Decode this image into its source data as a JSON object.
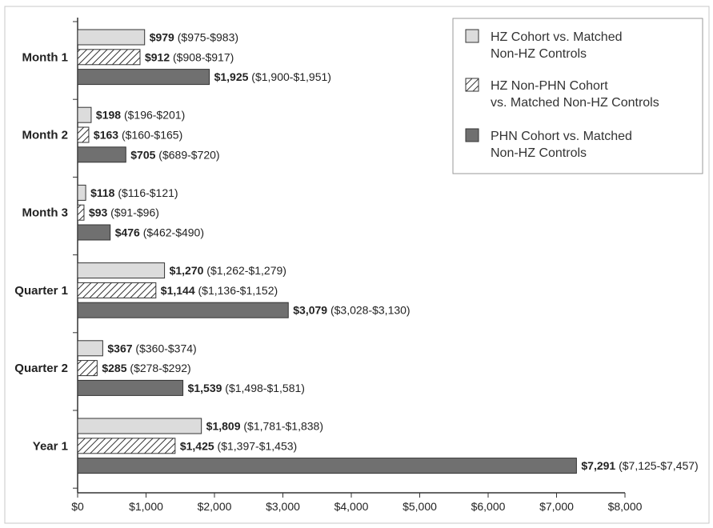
{
  "chart_data": {
    "type": "bar",
    "orientation": "horizontal",
    "categories": [
      "Month 1",
      "Month 2",
      "Month 3",
      "Quarter 1",
      "Quarter 2",
      "Year 1"
    ],
    "series": [
      {
        "name": "HZ Cohort vs. Matched Non-HZ Controls",
        "legend_lines": [
          "HZ Cohort vs. Matched",
          "Non-HZ Controls"
        ],
        "fill": "#dcdcdc",
        "pattern": "solid",
        "values": [
          979,
          198,
          118,
          1270,
          367,
          1809
        ],
        "value_labels": [
          "$979",
          "$198",
          "$118",
          "$1,270",
          "$367",
          "$1,809"
        ],
        "ci_labels": [
          "($975-$983)",
          "($196-$201)",
          "($116-$121)",
          "($1,262-$1,279)",
          "($360-$374)",
          "($1,781-$1,838)"
        ]
      },
      {
        "name": "HZ Non-PHN Cohort vs. Matched Non-HZ Controls",
        "legend_lines": [
          "HZ Non-PHN Cohort",
          "vs. Matched Non-HZ Controls"
        ],
        "fill": "#ffffff",
        "pattern": "hatched",
        "values": [
          912,
          163,
          93,
          1144,
          285,
          1425
        ],
        "value_labels": [
          "$912",
          "$163",
          "$93",
          "$1,144",
          "$285",
          "$1,425"
        ],
        "ci_labels": [
          "($908-$917)",
          "($160-$165)",
          "($91-$96)",
          "($1,136-$1,152)",
          "($278-$292)",
          "($1,397-$1,453)"
        ]
      },
      {
        "name": "PHN Cohort vs. Matched Non-HZ Controls",
        "legend_lines": [
          "PHN Cohort vs. Matched",
          "Non-HZ Controls"
        ],
        "fill": "#707070",
        "pattern": "solid",
        "values": [
          1925,
          705,
          476,
          3079,
          1539,
          7291
        ],
        "value_labels": [
          "$1,925",
          "$705",
          "$476",
          "$3,079",
          "$1,539",
          "$7,291"
        ],
        "ci_labels": [
          "($1,900-$1,951)",
          "($689-$720)",
          "($462-$490)",
          "($3,028-$3,130)",
          "($1,498-$1,581)",
          "($7,125-$7,457)"
        ]
      }
    ],
    "x_ticks": [
      0,
      1000,
      2000,
      3000,
      4000,
      5000,
      6000,
      7000,
      8000
    ],
    "x_tick_labels": [
      "$0",
      "$1,000",
      "$2,000",
      "$3,000",
      "$4,000",
      "$5,000",
      "$6,000",
      "$7,000",
      "$8,000"
    ],
    "xlim": [
      0,
      8000
    ],
    "grid": false,
    "legend_position": "top-right"
  }
}
